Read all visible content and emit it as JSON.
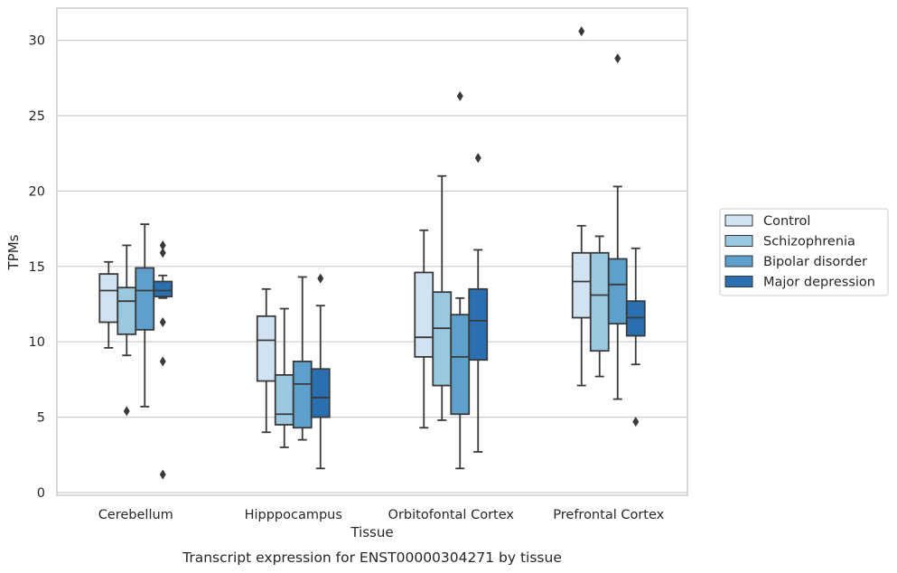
{
  "caption": "Transcript expression for ENST00000304271 by tissue",
  "chart_data": {
    "type": "box",
    "xlabel": "Tissue",
    "ylabel": "TPMs",
    "ylim": [
      -0.2,
      32
    ],
    "yticks": [
      0,
      5,
      10,
      15,
      20,
      25,
      30
    ],
    "grid": "horizontal",
    "legend_placement": "right-outside",
    "categories": [
      "Cerebellum",
      "Hipppocampus",
      "Orbitofontal Cortex",
      "Prefrontal Cortex"
    ],
    "series": [
      {
        "name": "Control",
        "color": "#d1e2f2",
        "boxes": [
          {
            "whisker_low": 9.6,
            "q1": 11.3,
            "median": 13.4,
            "q3": 14.5,
            "whisker_high": 15.3,
            "outliers": []
          },
          {
            "whisker_low": 4.0,
            "q1": 7.4,
            "median": 10.1,
            "q3": 11.7,
            "whisker_high": 13.5,
            "outliers": []
          },
          {
            "whisker_low": 4.3,
            "q1": 9.0,
            "median": 10.3,
            "q3": 14.6,
            "whisker_high": 17.4,
            "outliers": []
          },
          {
            "whisker_low": 7.1,
            "q1": 11.6,
            "median": 14.0,
            "q3": 15.9,
            "whisker_high": 17.7,
            "outliers": [
              30.6
            ]
          }
        ]
      },
      {
        "name": "Schizophrenia",
        "color": "#9ac8e0",
        "boxes": [
          {
            "whisker_low": 9.1,
            "q1": 10.5,
            "median": 12.7,
            "q3": 13.6,
            "whisker_high": 16.4,
            "outliers": [
              5.4
            ]
          },
          {
            "whisker_low": 3.0,
            "q1": 4.5,
            "median": 5.2,
            "q3": 7.8,
            "whisker_high": 12.2,
            "outliers": []
          },
          {
            "whisker_low": 4.8,
            "q1": 7.1,
            "median": 10.9,
            "q3": 13.3,
            "whisker_high": 21.0,
            "outliers": []
          },
          {
            "whisker_low": 7.7,
            "q1": 9.4,
            "median": 13.1,
            "q3": 15.9,
            "whisker_high": 17.0,
            "outliers": []
          }
        ]
      },
      {
        "name": "Bipolar disorder",
        "color": "#5ea0cc",
        "boxes": [
          {
            "whisker_low": 5.7,
            "q1": 10.8,
            "median": 13.4,
            "q3": 14.9,
            "whisker_high": 17.8,
            "outliers": []
          },
          {
            "whisker_low": 3.5,
            "q1": 4.3,
            "median": 7.2,
            "q3": 8.7,
            "whisker_high": 14.3,
            "outliers": []
          },
          {
            "whisker_low": 1.6,
            "q1": 5.2,
            "median": 9.0,
            "q3": 11.8,
            "whisker_high": 12.9,
            "outliers": [
              26.3
            ]
          },
          {
            "whisker_low": 6.2,
            "q1": 11.2,
            "median": 13.8,
            "q3": 15.5,
            "whisker_high": 20.3,
            "outliers": [
              28.8
            ]
          }
        ]
      },
      {
        "name": "Major depression",
        "color": "#2a70b0",
        "boxes": [
          {
            "whisker_low": 12.9,
            "q1": 13.0,
            "median": 13.4,
            "q3": 14.0,
            "whisker_high": 14.4,
            "outliers": [
              16.4,
              15.9,
              11.3,
              8.7,
              1.2
            ]
          },
          {
            "whisker_low": 1.6,
            "q1": 5.0,
            "median": 6.3,
            "q3": 8.2,
            "whisker_high": 12.4,
            "outliers": [
              14.2
            ]
          },
          {
            "whisker_low": 2.7,
            "q1": 8.8,
            "median": 11.4,
            "q3": 13.5,
            "whisker_high": 16.1,
            "outliers": [
              22.2
            ]
          },
          {
            "whisker_low": 8.5,
            "q1": 10.4,
            "median": 11.6,
            "q3": 12.7,
            "whisker_high": 16.2,
            "outliers": [
              4.7
            ]
          }
        ]
      }
    ]
  }
}
